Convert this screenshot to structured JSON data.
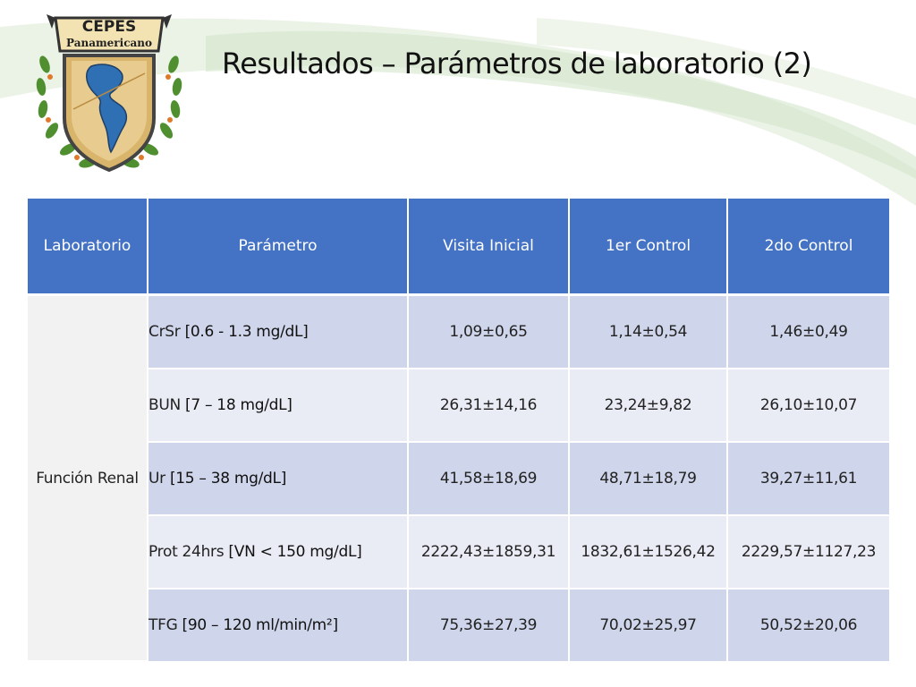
{
  "header": {
    "logo": {
      "text_top": "CEPES",
      "text_bottom": "Panamericano"
    },
    "title": "Resultados – Parámetros de laboratorio (2)"
  },
  "table": {
    "columns": [
      "Laboratorio",
      "Parámetro",
      "Visita Inicial",
      "1er Control",
      "2do Control"
    ],
    "group_label": "Función Renal",
    "rows": [
      {
        "name": "CrSr",
        "range": "[0.6 - 1.3 mg/dL]",
        "visita_inicial": "1,09±0,65",
        "control_1": "1,14±0,54",
        "control_2": "1,46±0,49"
      },
      {
        "name": "BUN",
        "range": "[7 – 18 mg/dL]",
        "visita_inicial": "26,31±14,16",
        "control_1": "23,24±9,82",
        "control_2": "26,10±10,07"
      },
      {
        "name": "Ur",
        "range": "[15 – 38 mg/dL]",
        "visita_inicial": "41,58±18,69",
        "control_1": "48,71±18,79",
        "control_2": "39,27±11,61"
      },
      {
        "name": "Prot 24hrs",
        "range": "[VN < 150 mg/dL]",
        "visita_inicial": "2222,43±1859,31",
        "control_1": "1832,61±1526,42",
        "control_2": "2229,57±1127,23"
      },
      {
        "name": "TFG",
        "range": "[90 – 120 ml/min/m²]",
        "visita_inicial": "75,36±27,39",
        "control_1": "70,02±25,97",
        "control_2": "50,52±20,06"
      }
    ]
  },
  "colors": {
    "header_fill": "#4472c4",
    "row_dark": "#cfd5ea",
    "row_light": "#e9ebf5",
    "group_fill": "#f2f2f2"
  }
}
